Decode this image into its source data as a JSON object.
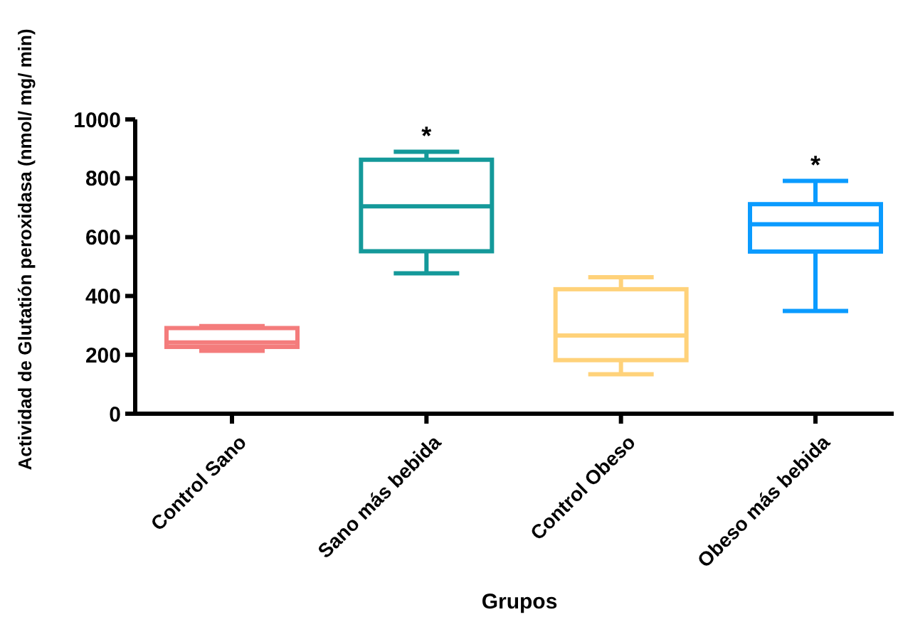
{
  "chart_data": {
    "type": "box",
    "xlabel": "Grupos",
    "ylabel": "Actividad de Glutatión peroxidasa (nmol/ mg/ min)",
    "categories": [
      "Control Sano",
      "Sano más bebida",
      "Control Obeso",
      "Obeso más bebida"
    ],
    "boxes": [
      {
        "low": 214,
        "q1": 227,
        "median": 242,
        "q3": 291,
        "high": 298
      },
      {
        "low": 477,
        "q1": 552,
        "median": 705,
        "q3": 863,
        "high": 890
      },
      {
        "low": 134,
        "q1": 182,
        "median": 266,
        "q3": 423,
        "high": 464
      },
      {
        "low": 349,
        "q1": 551,
        "median": 644,
        "q3": 712,
        "high": 791
      }
    ],
    "colors": [
      "#f47c7c",
      "#14999a",
      "#ffd27a",
      "#0a9bff"
    ],
    "ylim": [
      0,
      1000
    ],
    "yticks": [
      0,
      200,
      400,
      600,
      800,
      1000
    ],
    "grid": false,
    "annotations": [
      "*",
      "*"
    ]
  }
}
